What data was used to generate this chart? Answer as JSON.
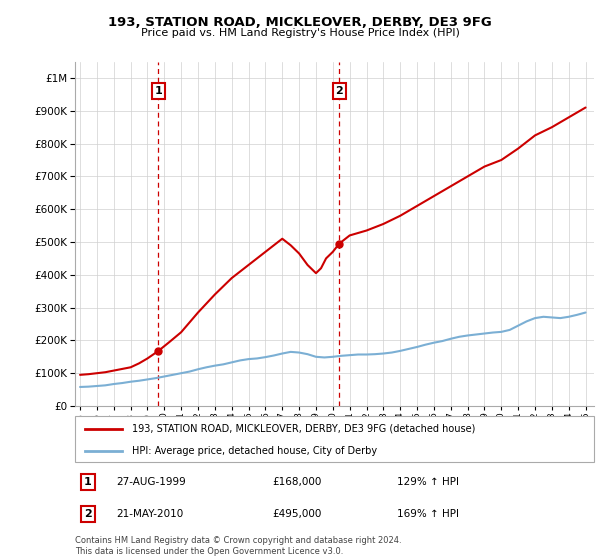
{
  "title": "193, STATION ROAD, MICKLEOVER, DERBY, DE3 9FG",
  "subtitle": "Price paid vs. HM Land Registry's House Price Index (HPI)",
  "legend_line1": "193, STATION ROAD, MICKLEOVER, DERBY, DE3 9FG (detached house)",
  "legend_line2": "HPI: Average price, detached house, City of Derby",
  "footnote": "Contains HM Land Registry data © Crown copyright and database right 2024.\nThis data is licensed under the Open Government Licence v3.0.",
  "sale1_date": "27-AUG-1999",
  "sale1_price": "£168,000",
  "sale1_hpi": "129% ↑ HPI",
  "sale2_date": "21-MAY-2010",
  "sale2_price": "£495,000",
  "sale2_hpi": "169% ↑ HPI",
  "property_color": "#cc0000",
  "hpi_color": "#7bafd4",
  "ylim_max": 1000000,
  "sale1_year": 1999.65,
  "sale1_value": 168000,
  "sale2_year": 2010.38,
  "sale2_value": 495000,
  "hpi_years": [
    1995,
    1995.5,
    1996,
    1996.5,
    1997,
    1997.5,
    1998,
    1998.5,
    1999,
    1999.5,
    2000,
    2000.5,
    2001,
    2001.5,
    2002,
    2002.5,
    2003,
    2003.5,
    2004,
    2004.5,
    2005,
    2005.5,
    2006,
    2006.5,
    2007,
    2007.5,
    2008,
    2008.5,
    2009,
    2009.5,
    2010,
    2010.5,
    2011,
    2011.5,
    2012,
    2012.5,
    2013,
    2013.5,
    2014,
    2014.5,
    2015,
    2015.5,
    2016,
    2016.5,
    2017,
    2017.5,
    2018,
    2018.5,
    2019,
    2019.5,
    2020,
    2020.5,
    2021,
    2021.5,
    2022,
    2022.5,
    2023,
    2023.5,
    2024,
    2024.5,
    2025
  ],
  "hpi_values": [
    58000,
    59000,
    61000,
    63000,
    67000,
    70000,
    74000,
    77000,
    81000,
    85000,
    90000,
    95000,
    100000,
    105000,
    112000,
    118000,
    123000,
    127000,
    133000,
    139000,
    143000,
    145000,
    149000,
    154000,
    160000,
    165000,
    163000,
    158000,
    150000,
    148000,
    150000,
    153000,
    155000,
    157000,
    157000,
    158000,
    160000,
    163000,
    168000,
    174000,
    180000,
    187000,
    193000,
    198000,
    205000,
    211000,
    215000,
    218000,
    221000,
    224000,
    226000,
    232000,
    245000,
    258000,
    268000,
    272000,
    270000,
    268000,
    272000,
    278000,
    285000
  ],
  "property_years": [
    1995.0,
    1995.5,
    1996.0,
    1996.5,
    1997.0,
    1997.5,
    1998.0,
    1998.5,
    1999.0,
    1999.65,
    2000.3,
    2001.0,
    2002.0,
    2003.0,
    2004.0,
    2005.0,
    2006.0,
    2006.5,
    2007.0,
    2007.5,
    2008.0,
    2008.5,
    2009.0,
    2009.3,
    2009.6,
    2010.0,
    2010.38,
    2011.0,
    2012.0,
    2013.0,
    2014.0,
    2015.0,
    2016.0,
    2017.0,
    2018.0,
    2019.0,
    2020.0,
    2021.0,
    2022.0,
    2023.0,
    2023.5,
    2024.0,
    2024.5,
    2025.0
  ],
  "property_values": [
    95000,
    97000,
    100000,
    103000,
    108000,
    113000,
    118000,
    130000,
    145000,
    168000,
    195000,
    225000,
    285000,
    340000,
    390000,
    430000,
    470000,
    490000,
    510000,
    490000,
    465000,
    430000,
    405000,
    420000,
    450000,
    470000,
    495000,
    520000,
    535000,
    555000,
    580000,
    610000,
    640000,
    670000,
    700000,
    730000,
    750000,
    785000,
    825000,
    850000,
    865000,
    880000,
    895000,
    910000
  ]
}
